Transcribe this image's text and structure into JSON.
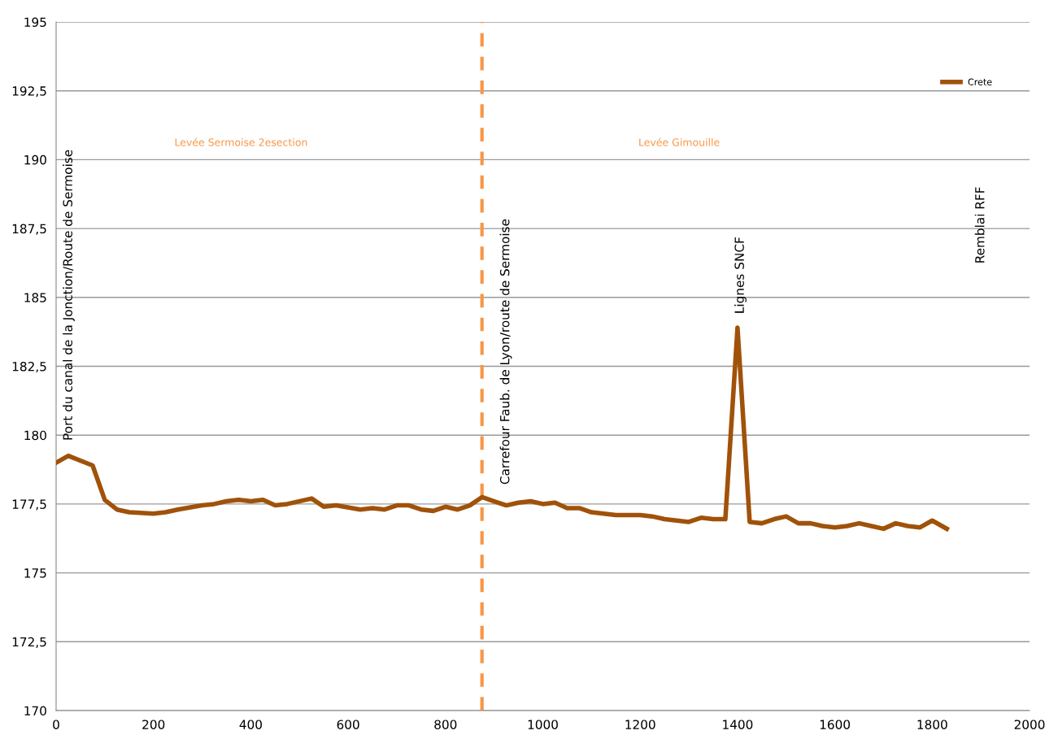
{
  "chart_data": {
    "type": "line",
    "x": [
      0,
      25,
      75,
      100,
      125,
      150,
      200,
      225,
      250,
      300,
      325,
      350,
      375,
      400,
      425,
      450,
      475,
      525,
      550,
      575,
      625,
      650,
      675,
      700,
      725,
      750,
      775,
      800,
      825,
      850,
      875,
      900,
      925,
      950,
      975,
      1000,
      1025,
      1050,
      1075,
      1100,
      1125,
      1150,
      1175,
      1200,
      1225,
      1250,
      1275,
      1300,
      1325,
      1350,
      1375,
      1400,
      1425,
      1450,
      1475,
      1500,
      1525,
      1550,
      1575,
      1600,
      1625,
      1650,
      1675,
      1700,
      1725,
      1750,
      1775,
      1800,
      1830
    ],
    "series": [
      {
        "name": "Crete",
        "color": "#a0520a",
        "values": [
          179.0,
          179.25,
          178.9,
          177.65,
          177.3,
          177.2,
          177.15,
          177.2,
          177.3,
          177.45,
          177.5,
          177.6,
          177.65,
          177.6,
          177.65,
          177.45,
          177.5,
          177.7,
          177.4,
          177.45,
          177.3,
          177.35,
          177.3,
          177.45,
          177.45,
          177.3,
          177.25,
          177.4,
          177.3,
          177.45,
          177.75,
          177.6,
          177.45,
          177.55,
          177.6,
          177.5,
          177.55,
          177.35,
          177.35,
          177.2,
          177.15,
          177.1,
          177.1,
          177.1,
          177.05,
          176.95,
          176.9,
          176.85,
          177.0,
          176.95,
          176.95,
          183.9,
          176.85,
          176.8,
          176.95,
          177.05,
          176.8,
          176.8,
          176.7,
          176.65,
          176.7,
          176.8,
          176.7,
          176.6,
          176.8,
          176.7,
          176.65,
          176.9,
          176.6
        ]
      }
    ],
    "xlim": [
      0,
      2000
    ],
    "xticks": [
      0,
      200,
      400,
      600,
      800,
      1000,
      1200,
      1400,
      1600,
      1800,
      2000
    ],
    "ylim": [
      170,
      195
    ],
    "yticks": [
      170,
      {
        "value": 172.5,
        "label": "172,5"
      },
      175,
      {
        "value": 177.5,
        "label": "177,5"
      },
      180,
      {
        "value": 182.5,
        "label": "182,5"
      },
      185,
      {
        "value": 187.5,
        "label": "187,5"
      },
      190,
      {
        "value": 192.5,
        "label": "192,5"
      },
      195
    ],
    "grid": "y",
    "legend": "top right",
    "marker": "none",
    "line_style": "solid",
    "ref_lines": [
      {
        "axis": "x",
        "value": 875,
        "color": "#f79646",
        "line_style": "dashed"
      }
    ],
    "annotations": [
      "Levée Sermoise 2esection",
      "Levée Gimouille",
      "Port du canal de la Jonction/Route de Sermoise",
      "Carrefour Faub. de Lyon/route de Sermoise",
      "Lignes SNCF",
      "Remblai RFF"
    ]
  }
}
